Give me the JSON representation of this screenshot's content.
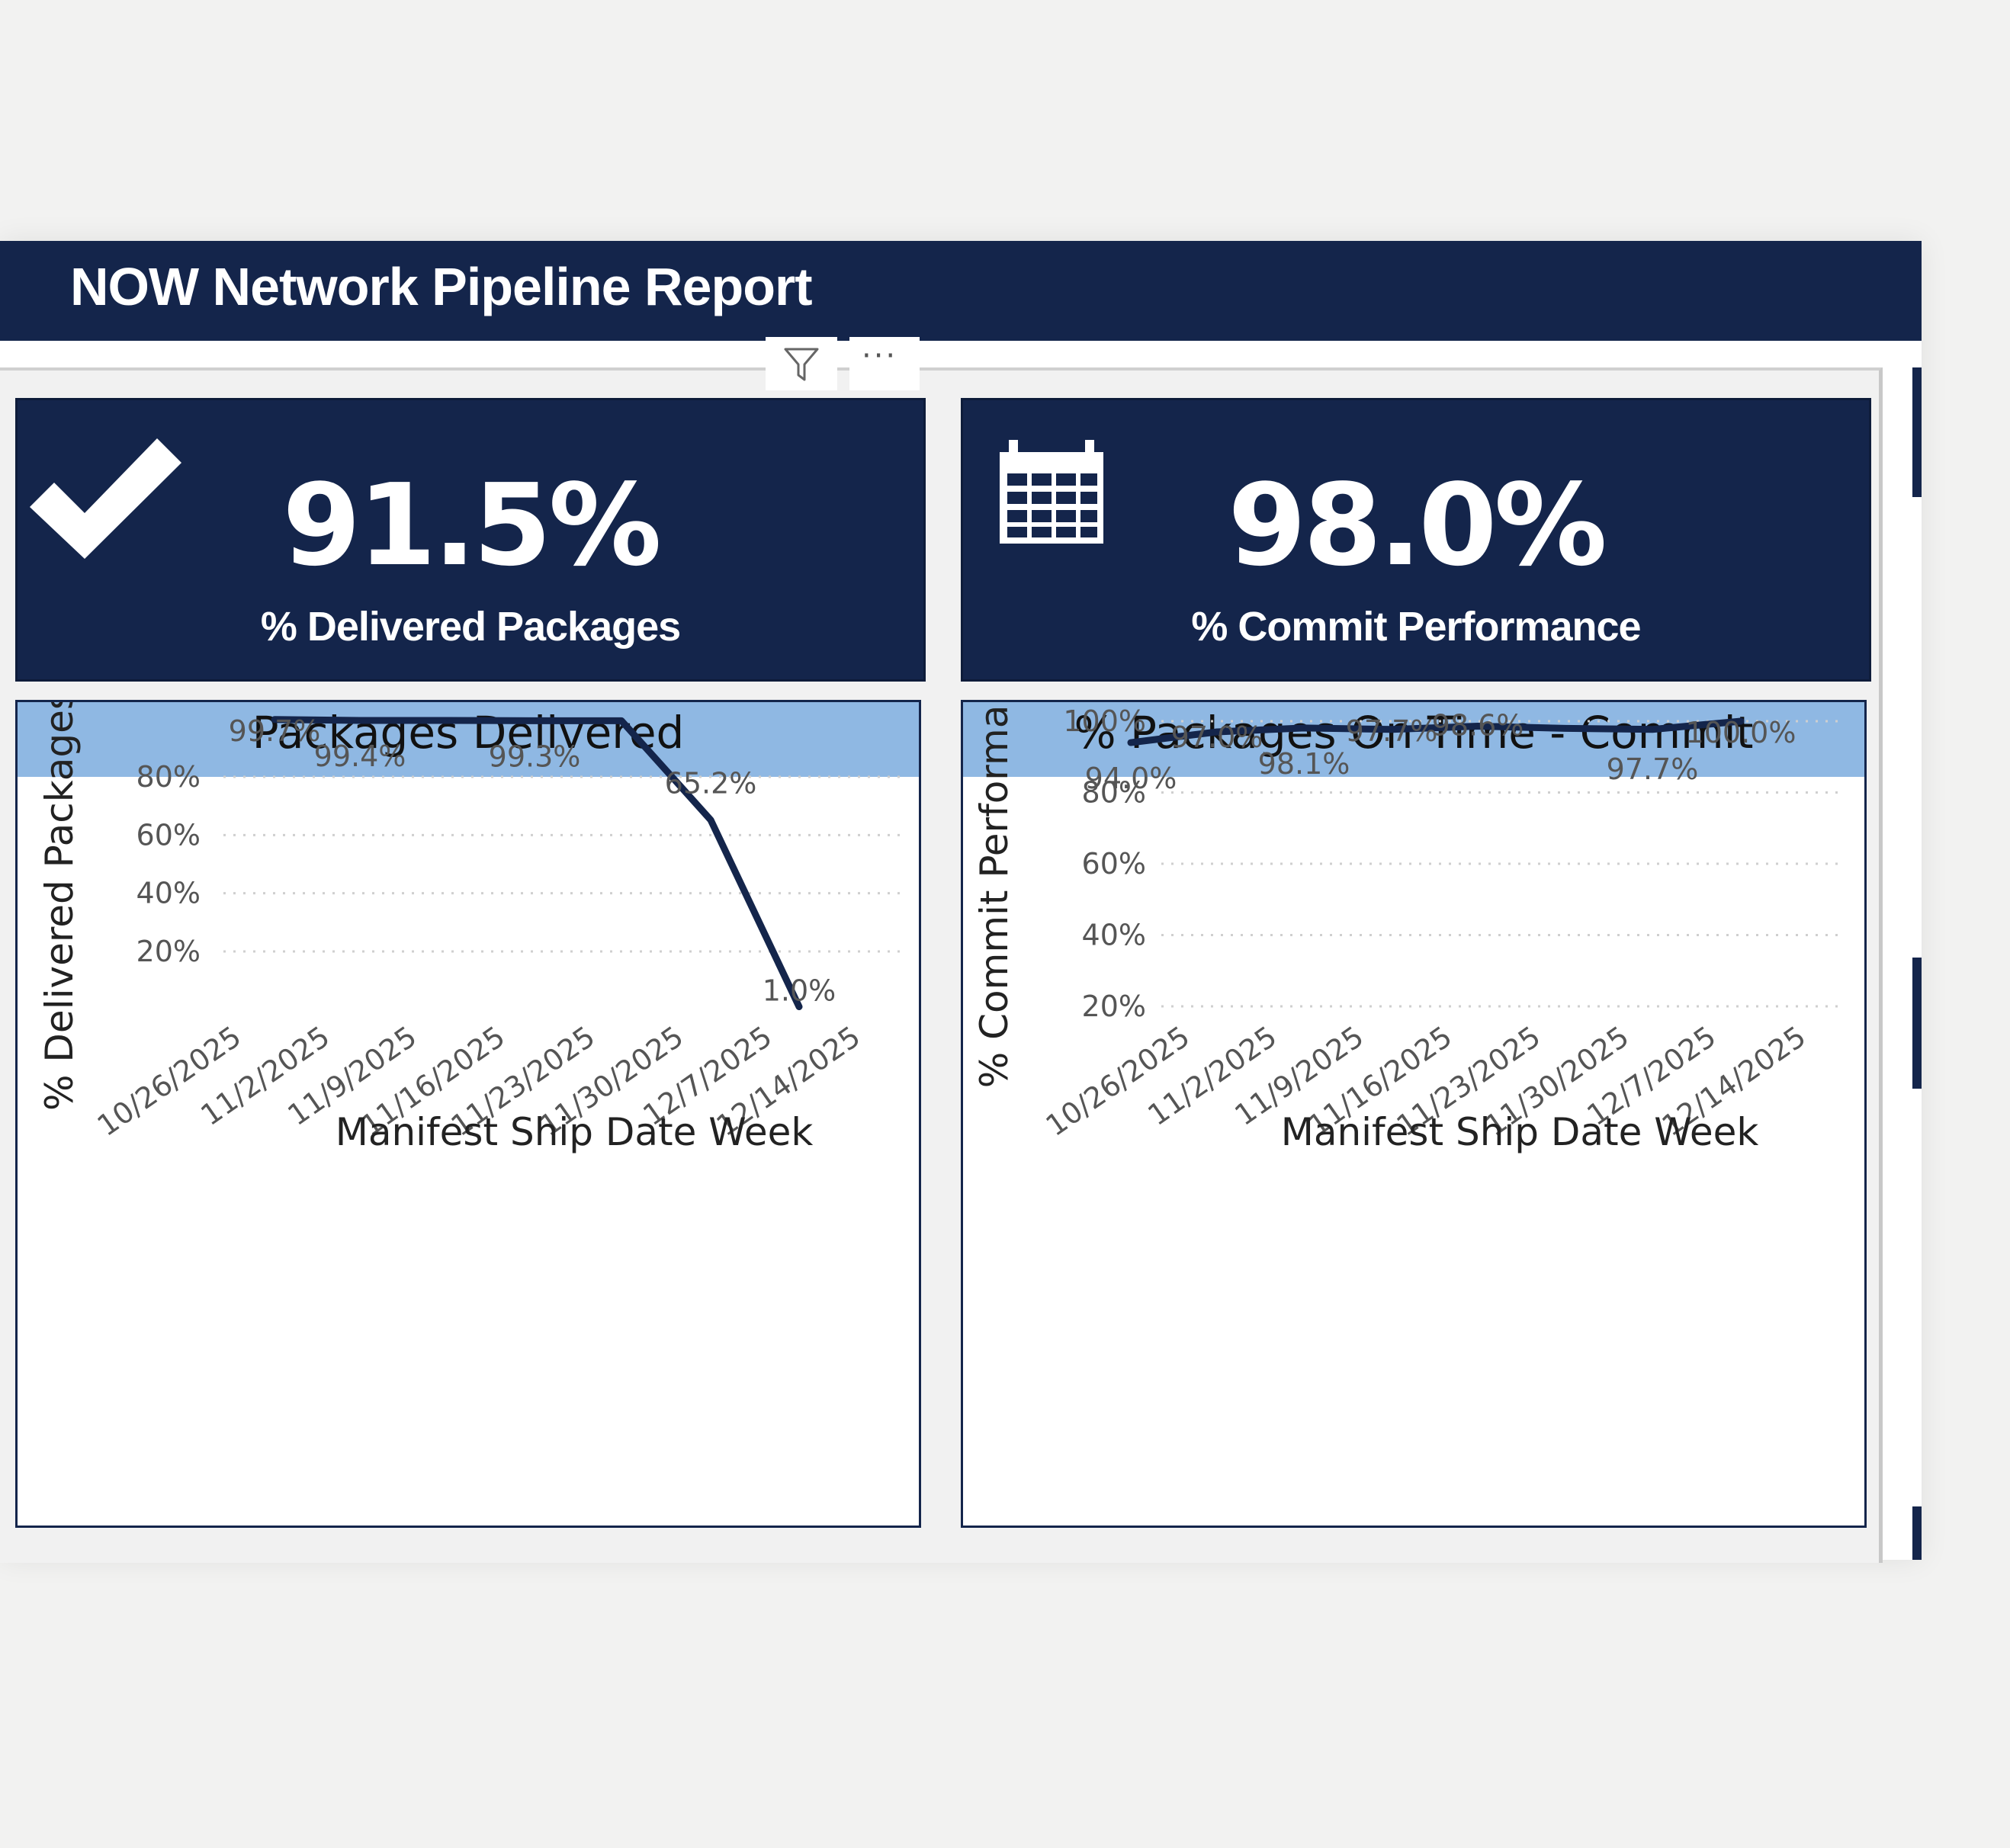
{
  "report": {
    "title": "NOW Network Pipeline Report"
  },
  "kpis": [
    {
      "value": "91.5%",
      "label": "% Delivered Packages",
      "icon": "checkmark-icon"
    },
    {
      "value": "98.0%",
      "label": "% Commit Performance",
      "icon": "calendar-icon"
    }
  ],
  "visual_header": {
    "more_label": "···",
    "filter_icon": "filter-icon"
  },
  "colors": {
    "navy": "#14254b",
    "title_bar": "#8fb8e3",
    "background": "#f2f2f1"
  },
  "chart_data": [
    {
      "type": "line",
      "title": "Packages Delivered",
      "xlabel": "Manifest Ship Date Week",
      "ylabel": "% Delivered Packages",
      "categories": [
        "10/26/2025",
        "11/2/2025",
        "11/9/2025",
        "11/16/2025",
        "11/23/2025",
        "11/30/2025",
        "12/7/2025",
        "12/14/2025"
      ],
      "ylim": [
        0,
        100
      ],
      "y_ticks": [
        20,
        40,
        60,
        80
      ],
      "y_tick_labels": [
        "20%",
        "40%",
        "60%",
        "80%"
      ],
      "grid": true,
      "series": [
        {
          "name": "% Delivered Packages",
          "points": [
            {
              "x": "11/2/2025",
              "y": 99.7
            },
            {
              "x": "11/9/2025",
              "y": 99.4
            },
            {
              "x": "11/16/2025",
              "y": 99.4
            },
            {
              "x": "11/23/2025",
              "y": 99.3
            },
            {
              "x": "11/30/2025",
              "y": 99.3
            },
            {
              "x": "12/7/2025",
              "y": 65.2
            },
            {
              "x": "12/14/2025",
              "y": 1.0
            }
          ]
        }
      ],
      "data_labels": [
        {
          "x": "11/2/2025",
          "text": "99.7%"
        },
        {
          "x": "11/9/2025",
          "text": "99.4%"
        },
        {
          "x": "11/23/2025",
          "text": "99.3%"
        },
        {
          "x": "12/7/2025",
          "text": "65.2%"
        },
        {
          "x": "12/14/2025",
          "text": "1.0%"
        }
      ]
    },
    {
      "type": "line",
      "title": "% Packages On Time - Commit",
      "xlabel": "Manifest Ship Date Week",
      "ylabel": "% Commit Performance",
      "categories": [
        "10/26/2025",
        "11/2/2025",
        "11/9/2025",
        "11/16/2025",
        "11/23/2025",
        "11/30/2025",
        "12/7/2025",
        "12/14/2025"
      ],
      "ylim": [
        20,
        100
      ],
      "y_ticks": [
        20,
        40,
        60,
        80,
        100
      ],
      "y_tick_labels": [
        "20%",
        "40%",
        "60%",
        "80%",
        "100%"
      ],
      "grid": true,
      "series": [
        {
          "name": "% Commit Performance",
          "points": [
            {
              "x": "10/26/2025",
              "y": 94.0
            },
            {
              "x": "11/2/2025",
              "y": 97.0
            },
            {
              "x": "11/9/2025",
              "y": 98.1
            },
            {
              "x": "11/16/2025",
              "y": 97.7
            },
            {
              "x": "11/23/2025",
              "y": 98.6
            },
            {
              "x": "11/30/2025",
              "y": 98.0
            },
            {
              "x": "12/7/2025",
              "y": 97.7
            },
            {
              "x": "12/14/2025",
              "y": 100.0
            }
          ]
        }
      ],
      "data_labels": [
        {
          "x": "10/26/2025",
          "text": "94.0%"
        },
        {
          "x": "11/2/2025",
          "text": "97.0%"
        },
        {
          "x": "11/9/2025",
          "text": "98.1%"
        },
        {
          "x": "11/16/2025",
          "text": "97.7%"
        },
        {
          "x": "11/23/2025",
          "text": "98.6%"
        },
        {
          "x": "12/7/2025",
          "text": "97.7%"
        },
        {
          "x": "12/14/2025",
          "text": "100.0%"
        }
      ]
    }
  ]
}
